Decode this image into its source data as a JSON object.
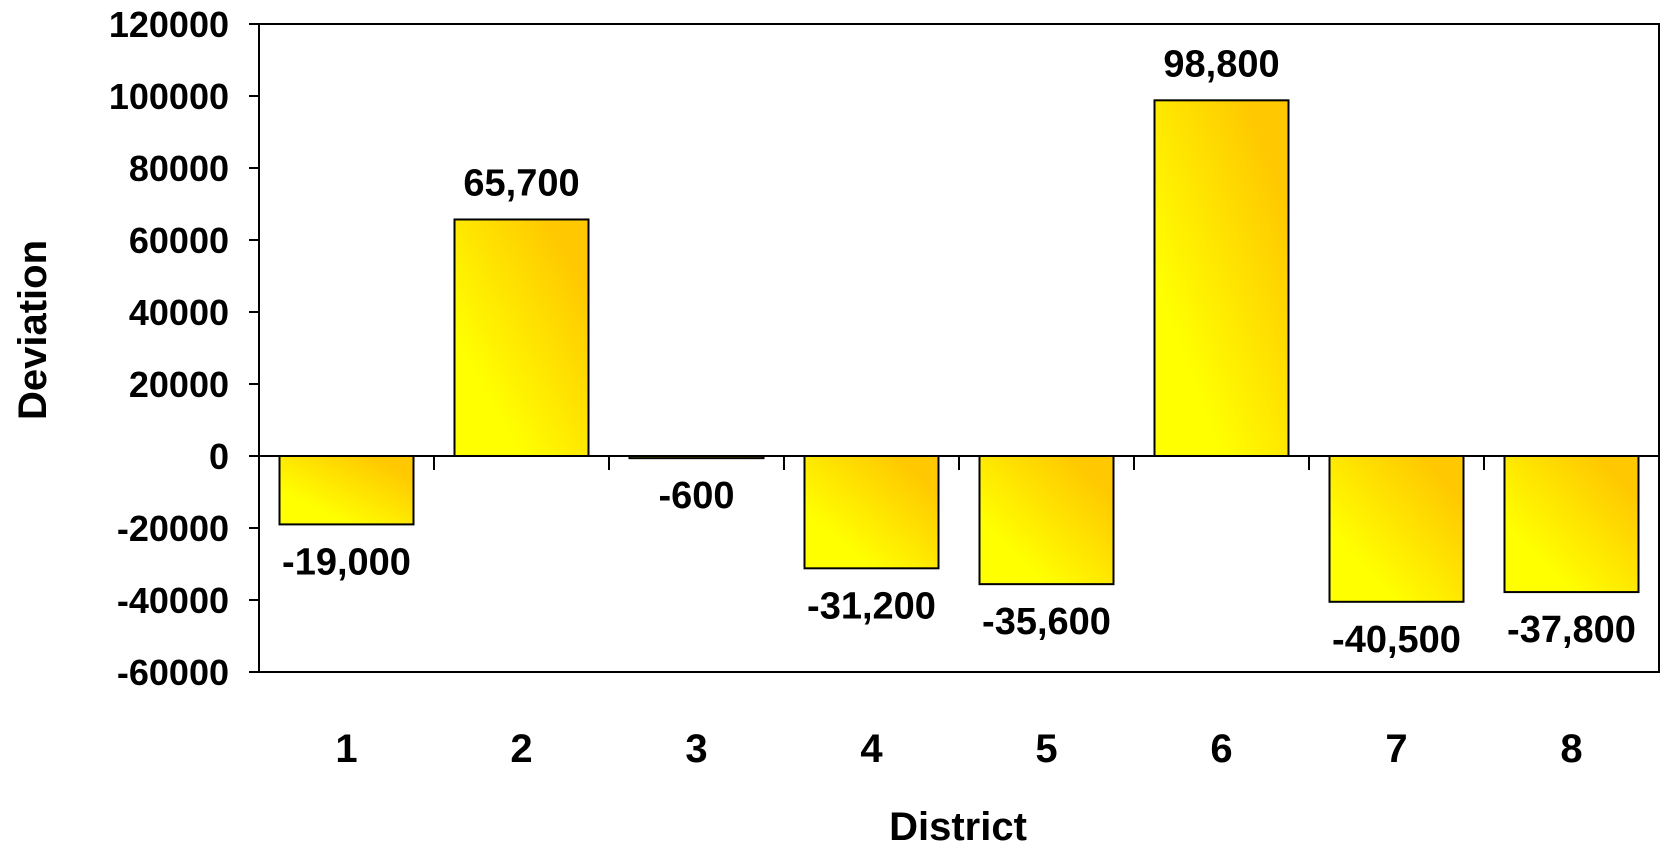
{
  "chart_data": {
    "type": "bar",
    "title": "",
    "xlabel": "District",
    "ylabel": "Deviation",
    "categories": [
      "1",
      "2",
      "3",
      "4",
      "5",
      "6",
      "7",
      "8"
    ],
    "values": [
      -19000,
      65700,
      -600,
      -31200,
      -35600,
      98800,
      -40500,
      -37800
    ],
    "data_labels": [
      "-19,000",
      "65,700",
      "-600",
      "-31,200",
      "-35,600",
      "98,800",
      "-40,500",
      "-37,800"
    ],
    "ylim": [
      -60000,
      120000
    ],
    "y_ticks": [
      120000,
      100000,
      80000,
      60000,
      40000,
      20000,
      0,
      -20000,
      -40000,
      -60000
    ],
    "y_tick_labels": [
      "120000",
      "100000",
      "80000",
      "60000",
      "40000",
      "20000",
      "0",
      "-20000",
      "-40000",
      "-60000"
    ],
    "grid": false,
    "legend": "none",
    "colors": {
      "bar_light": "#ffff00",
      "bar_dark": "#ffc800",
      "bar_stroke": "#000000",
      "axis": "#000000"
    }
  }
}
